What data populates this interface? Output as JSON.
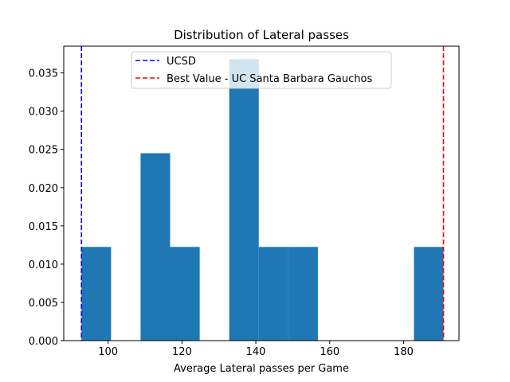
{
  "chart_data": {
    "type": "bar",
    "title": "Distribution of Lateral passes",
    "xlabel": "Average Lateral passes per Game",
    "ylabel": "",
    "xlim": [
      88,
      195
    ],
    "ylim": [
      0,
      0.0385
    ],
    "x_ticks": [
      100,
      120,
      140,
      160,
      180
    ],
    "y_ticks": [
      0.0,
      0.005,
      0.01,
      0.015,
      0.02,
      0.025,
      0.03,
      0.035
    ],
    "bar_color": "#1f77b4",
    "bins": [
      {
        "start": 92.8,
        "end": 100.8,
        "value": 0.01225
      },
      {
        "start": 100.8,
        "end": 108.8,
        "value": 0
      },
      {
        "start": 108.8,
        "end": 116.8,
        "value": 0.0245
      },
      {
        "start": 116.8,
        "end": 124.8,
        "value": 0.01225
      },
      {
        "start": 124.8,
        "end": 132.8,
        "value": 0
      },
      {
        "start": 132.8,
        "end": 140.8,
        "value": 0.0368
      },
      {
        "start": 140.8,
        "end": 148.8,
        "value": 0.01225
      },
      {
        "start": 148.8,
        "end": 156.8,
        "value": 0.01225
      },
      {
        "start": 156.8,
        "end": 164.8,
        "value": 0
      },
      {
        "start": 164.8,
        "end": 172.8,
        "value": 0
      },
      {
        "start": 172.8,
        "end": 182.8,
        "value": 0
      },
      {
        "start": 182.8,
        "end": 190.8,
        "value": 0.01225
      }
    ],
    "reference_lines": [
      {
        "name": "UCSD",
        "x": 92.8,
        "color": "#0000ff",
        "style": "dashed"
      },
      {
        "name": "Best Value - UC Santa Barbara Gauchos",
        "x": 190.8,
        "color": "#ff0000",
        "style": "dashed"
      }
    ],
    "legend": {
      "placement": "top-center"
    }
  }
}
